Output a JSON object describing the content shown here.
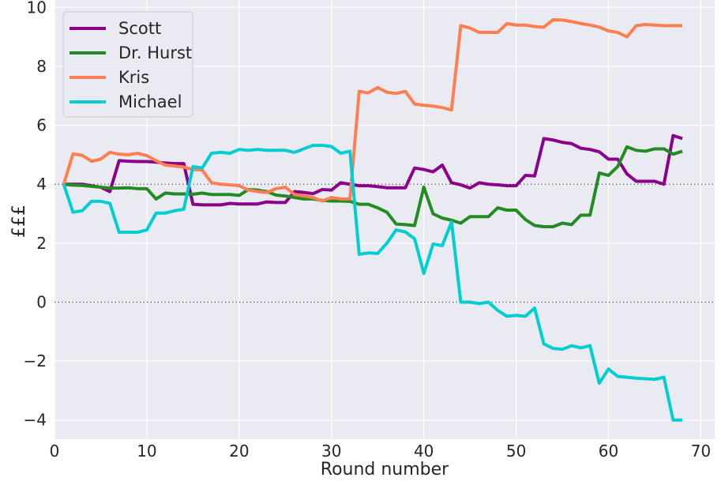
{
  "chart_data": {
    "type": "line",
    "title": "",
    "xlabel": "Round number",
    "ylabel": "£££",
    "xlim": [
      0,
      71.5
    ],
    "ylim": [
      -4.65,
      10.25
    ],
    "xticks": [
      0,
      10,
      20,
      30,
      40,
      50,
      60,
      70
    ],
    "xtick_labels": [
      "0",
      "10",
      "20",
      "30",
      "40",
      "50",
      "60",
      "70"
    ],
    "yticks": [
      -4,
      -2,
      0,
      2,
      4,
      6,
      8,
      10
    ],
    "ytick_labels": [
      "−4",
      "−2",
      "0",
      "2",
      "4",
      "6",
      "8",
      "10"
    ],
    "reference_lines": [
      0,
      4
    ],
    "grid": true,
    "background": "#eaeaf2",
    "legend_position": "top-left",
    "x": [
      1,
      2,
      3,
      4,
      5,
      6,
      7,
      8,
      9,
      10,
      11,
      12,
      13,
      14,
      15,
      16,
      17,
      18,
      19,
      20,
      21,
      22,
      23,
      24,
      25,
      26,
      27,
      28,
      29,
      30,
      31,
      32,
      33,
      34,
      35,
      36,
      37,
      38,
      39,
      40,
      41,
      42,
      43,
      44,
      45,
      46,
      47,
      48,
      49,
      50,
      51,
      52,
      53,
      54,
      55,
      56,
      57,
      58,
      59,
      60,
      61,
      62,
      63,
      64,
      65,
      66,
      67,
      68
    ],
    "series": [
      {
        "name": "Scott",
        "color": "#8b008b",
        "values": [
          4.0,
          4.0,
          4.0,
          3.95,
          3.9,
          3.75,
          4.8,
          4.78,
          4.77,
          4.77,
          4.75,
          4.72,
          4.7,
          4.7,
          3.32,
          3.3,
          3.3,
          3.3,
          3.35,
          3.33,
          3.33,
          3.33,
          3.4,
          3.38,
          3.38,
          3.75,
          3.72,
          3.68,
          3.82,
          3.8,
          4.05,
          4.0,
          3.95,
          3.95,
          3.92,
          3.88,
          3.88,
          3.88,
          4.55,
          4.5,
          4.42,
          4.65,
          4.05,
          3.98,
          3.87,
          4.05,
          4.0,
          3.98,
          3.95,
          3.95,
          4.3,
          4.28,
          5.55,
          5.5,
          5.42,
          5.38,
          5.22,
          5.18,
          5.1,
          4.85,
          4.85,
          4.35,
          4.1,
          4.1,
          4.1,
          4.0,
          5.65,
          5.55
        ]
      },
      {
        "name": "Dr. Hurst",
        "color": "#228b22",
        "values": [
          4.0,
          3.97,
          3.96,
          3.93,
          3.9,
          3.87,
          3.87,
          3.88,
          3.85,
          3.85,
          3.5,
          3.7,
          3.67,
          3.67,
          3.66,
          3.7,
          3.65,
          3.65,
          3.65,
          3.62,
          3.82,
          3.8,
          3.75,
          3.63,
          3.6,
          3.55,
          3.5,
          3.5,
          3.45,
          3.43,
          3.43,
          3.42,
          3.32,
          3.32,
          3.2,
          3.05,
          2.65,
          2.63,
          2.6,
          3.9,
          3.0,
          2.85,
          2.78,
          2.68,
          2.9,
          2.9,
          2.9,
          3.2,
          3.12,
          3.12,
          2.8,
          2.6,
          2.56,
          2.56,
          2.68,
          2.63,
          2.95,
          2.95,
          4.38,
          4.3,
          4.6,
          5.27,
          5.15,
          5.12,
          5.2,
          5.2,
          5.02,
          5.12
        ]
      },
      {
        "name": "Kris",
        "color": "#ff7f50",
        "values": [
          4.0,
          5.03,
          4.98,
          4.78,
          4.85,
          5.08,
          5.02,
          5.0,
          5.05,
          4.97,
          4.8,
          4.65,
          4.62,
          4.58,
          4.5,
          4.48,
          4.05,
          4.0,
          3.98,
          3.95,
          3.8,
          3.75,
          3.72,
          3.85,
          3.9,
          3.65,
          3.6,
          3.55,
          3.43,
          3.55,
          3.5,
          3.5,
          7.15,
          7.1,
          7.28,
          7.12,
          7.08,
          7.15,
          6.72,
          6.68,
          6.65,
          6.6,
          6.52,
          9.38,
          9.3,
          9.15,
          9.15,
          9.15,
          9.45,
          9.4,
          9.4,
          9.35,
          9.33,
          9.58,
          9.57,
          9.52,
          9.45,
          9.4,
          9.33,
          9.2,
          9.15,
          9.0,
          9.38,
          9.42,
          9.4,
          9.38,
          9.38,
          9.38
        ]
      },
      {
        "name": "Michael",
        "color": "#00ced1",
        "values": [
          4.0,
          3.05,
          3.1,
          3.42,
          3.42,
          3.35,
          2.37,
          2.37,
          2.37,
          2.45,
          3.02,
          3.02,
          3.1,
          3.15,
          4.6,
          4.55,
          5.05,
          5.08,
          5.05,
          5.18,
          5.15,
          5.18,
          5.15,
          5.15,
          5.15,
          5.08,
          5.2,
          5.32,
          5.32,
          5.28,
          5.05,
          5.12,
          1.62,
          1.67,
          1.65,
          2.0,
          2.45,
          2.38,
          2.15,
          0.97,
          1.97,
          1.92,
          2.72,
          0.0,
          0.0,
          -0.05,
          0.0,
          -0.28,
          -0.48,
          -0.45,
          -0.48,
          -0.2,
          -1.42,
          -1.57,
          -1.6,
          -1.48,
          -1.55,
          -1.48,
          -2.75,
          -2.27,
          -2.52,
          -2.55,
          -2.58,
          -2.6,
          -2.62,
          -2.55,
          -4.0,
          -4.0
        ]
      }
    ]
  }
}
